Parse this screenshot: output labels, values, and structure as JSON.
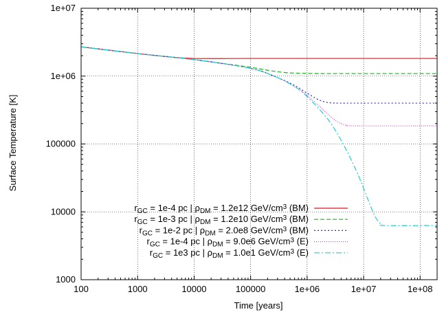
{
  "chart_data": {
    "type": "line",
    "title": "",
    "xlabel": "Time [years]",
    "ylabel": "Surface Temperature [K]",
    "x_scale": "log",
    "y_scale": "log",
    "xlim": [
      100,
      200000000
    ],
    "ylim": [
      1000,
      10000000
    ],
    "grid": true,
    "legend_position": "bottom-left",
    "x_ticks": [
      {
        "value": 100,
        "label": "100"
      },
      {
        "value": 1000,
        "label": "1000"
      },
      {
        "value": 10000,
        "label": "10000"
      },
      {
        "value": 100000,
        "label": "100000"
      },
      {
        "value": 1000000,
        "label": "1e+06"
      },
      {
        "value": 10000000,
        "label": "1e+07"
      },
      {
        "value": 100000000,
        "label": "1e+08"
      }
    ],
    "y_ticks": [
      {
        "value": 1000,
        "label": "1000"
      },
      {
        "value": 10000,
        "label": "10000"
      },
      {
        "value": 100000,
        "label": "100000"
      },
      {
        "value": 1000000,
        "label": "1e+06"
      },
      {
        "value": 10000000,
        "label": "1e+07"
      }
    ],
    "series": [
      {
        "legend": {
          "r_sub": "GC",
          "r_val": " = 1e-4 pc | ",
          "rho_sub": "DM",
          "rho_val": " = 1.2e12 GeV/cm",
          "sup": "3",
          "suffix": " (BM)"
        },
        "color": "#e0161b",
        "dash": "",
        "x": [
          100,
          1000,
          3000,
          10000,
          100000,
          1000000,
          10000000,
          200000000
        ],
        "y": [
          2700000,
          2150000,
          1950000,
          1820000,
          1820000,
          1820000,
          1820000,
          1820000
        ]
      },
      {
        "legend": {
          "r_sub": "GC",
          "r_val": " = 1e-3 pc | ",
          "rho_sub": "DM",
          "rho_val": " = 1.2e10 GeV/cm",
          "sup": "3",
          "suffix": " (BM)"
        },
        "color": "#19b219",
        "dash": "6,3",
        "x": [
          100,
          1000,
          10000,
          30000,
          100000,
          200000,
          400000,
          800000,
          2000000,
          10000000,
          200000000
        ],
        "y": [
          2700000,
          2150000,
          1750000,
          1550000,
          1350000,
          1220000,
          1130000,
          1100000,
          1090000,
          1090000,
          1090000
        ]
      },
      {
        "legend": {
          "r_sub": "GC",
          "r_val": " = 1e-2 pc | ",
          "rho_sub": "DM",
          "rho_val": " = 2.0e8 GeV/cm",
          "sup": "3",
          "suffix": " (BM)"
        },
        "color": "#2424d6",
        "dash": "2,3",
        "x": [
          100,
          1000,
          10000,
          100000,
          300000,
          600000,
          1000000,
          1500000,
          2000000,
          2500000,
          3500000,
          10000000,
          200000000
        ],
        "y": [
          2700000,
          2150000,
          1750000,
          1300000,
          950000,
          730000,
          560000,
          460000,
          420000,
          405000,
          400000,
          400000,
          400000
        ]
      },
      {
        "legend": {
          "r_sub": "GC",
          "r_val": " = 1e-4 pc | ",
          "rho_sub": "DM",
          "rho_val": " = 9.0e6 GeV/cm",
          "sup": "3",
          "suffix": " (E)"
        },
        "color": "#d833d8",
        "dash": "1,2",
        "x": [
          100,
          1000,
          10000,
          100000,
          300000,
          600000,
          1000000,
          2000000,
          3000000,
          4000000,
          5000000,
          7000000,
          200000000
        ],
        "y": [
          2700000,
          2150000,
          1750000,
          1300000,
          950000,
          700000,
          520000,
          310000,
          230000,
          200000,
          190000,
          185000,
          185000
        ]
      },
      {
        "legend": {
          "r_sub": "GC",
          "r_val": " = 1e3 pc | ",
          "rho_sub": "DM",
          "rho_val": " = 1.0e1 GeV/cm",
          "sup": "3",
          "suffix": " (E)"
        },
        "color": "#1fd0d0",
        "dash": "8,3,2,3",
        "x": [
          100,
          1000,
          10000,
          100000,
          300000,
          600000,
          1000000,
          2000000,
          3000000,
          5000000,
          8000000,
          12000000,
          16000000,
          20000000,
          24000000,
          200000000
        ],
        "y": [
          2700000,
          2150000,
          1750000,
          1300000,
          950000,
          700000,
          500000,
          270000,
          170000,
          80000,
          35000,
          15000,
          8500,
          6700,
          6300,
          6300
        ]
      }
    ]
  }
}
